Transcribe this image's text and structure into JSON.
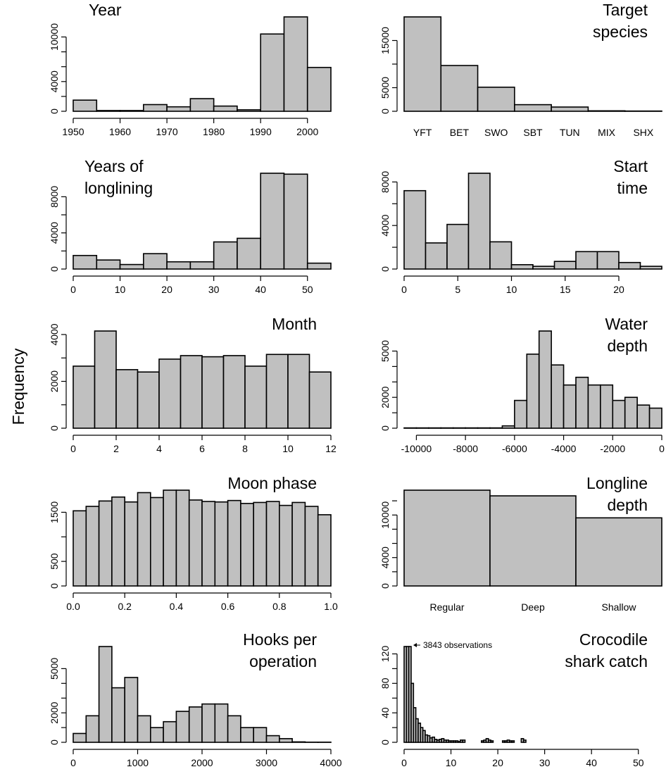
{
  "figure": {
    "ylabel": "Frequency",
    "colors": {
      "bar_fill": "#c0c0c0",
      "bar_stroke": "#000000",
      "background": "#ffffff"
    }
  },
  "chart_data": [
    {
      "id": "year",
      "type": "bar",
      "title_lines": [
        "Year"
      ],
      "title_align": "left",
      "x_kind": "histogram",
      "bins": [
        [
          1950,
          1955
        ],
        [
          1955,
          1960
        ],
        [
          1960,
          1965
        ],
        [
          1965,
          1970
        ],
        [
          1970,
          1975
        ],
        [
          1975,
          1980
        ],
        [
          1980,
          1985
        ],
        [
          1985,
          1990
        ],
        [
          1990,
          1995
        ],
        [
          1995,
          2000
        ],
        [
          2000,
          2005
        ]
      ],
      "values": [
        1500,
        100,
        100,
        900,
        600,
        1700,
        700,
        200,
        10400,
        12700,
        5900
      ],
      "xlim": [
        1950,
        2005
      ],
      "ylim": [
        0,
        12700
      ],
      "xticks": [
        1950,
        1960,
        1970,
        1980,
        1990,
        2000
      ],
      "yticks": [
        0,
        4000,
        10000
      ],
      "yminor": [
        2000,
        6000,
        8000
      ],
      "grid": false
    },
    {
      "id": "target_species",
      "type": "bar",
      "title_lines": [
        "Target",
        "species"
      ],
      "title_align": "right",
      "x_kind": "categorical",
      "categories": [
        "YFT",
        "BET",
        "SWO",
        "SBT",
        "TUN",
        "MIX",
        "SHX"
      ],
      "values": [
        20000,
        9700,
        5100,
        1400,
        900,
        100,
        50
      ],
      "ylim": [
        0,
        20000
      ],
      "yticks": [
        0,
        5000,
        15000
      ],
      "yminor": [
        10000
      ],
      "grid": false
    },
    {
      "id": "years_of_longlining",
      "type": "bar",
      "title_lines": [
        "Years of",
        "longlining"
      ],
      "title_align": "left",
      "x_kind": "histogram",
      "bins": [
        [
          0,
          5
        ],
        [
          5,
          10
        ],
        [
          10,
          15
        ],
        [
          15,
          20
        ],
        [
          20,
          25
        ],
        [
          25,
          30
        ],
        [
          30,
          35
        ],
        [
          35,
          40
        ],
        [
          40,
          45
        ],
        [
          45,
          50
        ],
        [
          50,
          55
        ]
      ],
      "values": [
        1500,
        1000,
        500,
        1700,
        800,
        800,
        3000,
        3400,
        10600,
        10500,
        650
      ],
      "xlim": [
        0,
        55
      ],
      "ylim": [
        0,
        10600
      ],
      "xticks": [
        0,
        10,
        20,
        30,
        40,
        50
      ],
      "yticks": [
        0,
        4000,
        8000
      ],
      "yminor": [
        2000,
        6000
      ],
      "grid": false
    },
    {
      "id": "start_time",
      "type": "bar",
      "title_lines": [
        "Start",
        "time"
      ],
      "title_align": "right",
      "x_kind": "histogram",
      "bins": [
        [
          0,
          2
        ],
        [
          2,
          4
        ],
        [
          4,
          6
        ],
        [
          6,
          8
        ],
        [
          8,
          10
        ],
        [
          10,
          12
        ],
        [
          12,
          14
        ],
        [
          14,
          16
        ],
        [
          16,
          18
        ],
        [
          18,
          20
        ],
        [
          20,
          22
        ],
        [
          22,
          24
        ]
      ],
      "values": [
        7200,
        2400,
        4100,
        8800,
        2500,
        400,
        250,
        700,
        1600,
        1600,
        600,
        250
      ],
      "xlim": [
        0,
        24
      ],
      "ylim": [
        0,
        8800
      ],
      "xticks": [
        0,
        5,
        10,
        15,
        20
      ],
      "yticks": [
        0,
        4000,
        8000
      ],
      "yminor": [
        2000,
        6000
      ],
      "grid": false
    },
    {
      "id": "month",
      "type": "bar",
      "title_lines": [
        "Month"
      ],
      "title_align": "right",
      "x_kind": "histogram",
      "bins": [
        [
          0,
          1
        ],
        [
          1,
          2
        ],
        [
          2,
          3
        ],
        [
          3,
          4
        ],
        [
          4,
          5
        ],
        [
          5,
          6
        ],
        [
          6,
          7
        ],
        [
          7,
          8
        ],
        [
          8,
          9
        ],
        [
          9,
          10
        ],
        [
          10,
          11
        ],
        [
          11,
          12
        ]
      ],
      "values": [
        2650,
        4150,
        2500,
        2400,
        2950,
        3100,
        3050,
        3100,
        2650,
        3150,
        3150,
        2400
      ],
      "xlim": [
        0,
        12
      ],
      "ylim": [
        0,
        4150
      ],
      "xticks": [
        0,
        2,
        4,
        6,
        8,
        10,
        12
      ],
      "yticks": [
        0,
        2000,
        4000
      ],
      "yminor": [
        1000,
        3000
      ],
      "grid": false
    },
    {
      "id": "water_depth",
      "type": "bar",
      "title_lines": [
        "Water",
        "depth"
      ],
      "title_align": "right",
      "x_kind": "histogram",
      "bins": [
        [
          -10500,
          -10000
        ],
        [
          -10000,
          -9500
        ],
        [
          -9500,
          -9000
        ],
        [
          -9000,
          -8500
        ],
        [
          -8500,
          -8000
        ],
        [
          -8000,
          -7500
        ],
        [
          -7500,
          -7000
        ],
        [
          -7000,
          -6500
        ],
        [
          -6500,
          -6000
        ],
        [
          -6000,
          -5500
        ],
        [
          -5500,
          -5000
        ],
        [
          -5000,
          -4500
        ],
        [
          -4500,
          -4000
        ],
        [
          -4000,
          -3500
        ],
        [
          -3500,
          -3000
        ],
        [
          -3000,
          -2500
        ],
        [
          -2500,
          -2000
        ],
        [
          -2000,
          -1500
        ],
        [
          -1500,
          -1000
        ],
        [
          -1000,
          -500
        ],
        [
          -500,
          0
        ]
      ],
      "values": [
        20,
        20,
        20,
        20,
        20,
        20,
        20,
        20,
        150,
        1800,
        4800,
        6300,
        4100,
        2800,
        3300,
        2800,
        2800,
        1800,
        2000,
        1500,
        1300
      ],
      "xlim": [
        -10500,
        0
      ],
      "ylim": [
        0,
        6300
      ],
      "xticks": [
        -10000,
        -8000,
        -6000,
        -4000,
        -2000,
        0
      ],
      "yticks": [
        0,
        2000,
        5000
      ],
      "yminor": [
        1000,
        3000,
        4000
      ],
      "grid": false
    },
    {
      "id": "moon_phase",
      "type": "bar",
      "title_lines": [
        "Moon phase"
      ],
      "title_align": "right",
      "x_kind": "histogram",
      "bins": [
        [
          0,
          0.05
        ],
        [
          0.05,
          0.1
        ],
        [
          0.1,
          0.15
        ],
        [
          0.15,
          0.2
        ],
        [
          0.2,
          0.25
        ],
        [
          0.25,
          0.3
        ],
        [
          0.3,
          0.35
        ],
        [
          0.35,
          0.4
        ],
        [
          0.4,
          0.45
        ],
        [
          0.45,
          0.5
        ],
        [
          0.5,
          0.55
        ],
        [
          0.55,
          0.6
        ],
        [
          0.6,
          0.65
        ],
        [
          0.65,
          0.7
        ],
        [
          0.7,
          0.75
        ],
        [
          0.75,
          0.8
        ],
        [
          0.8,
          0.85
        ],
        [
          0.85,
          0.9
        ],
        [
          0.9,
          0.95
        ],
        [
          0.95,
          1.0
        ]
      ],
      "values": [
        1530,
        1620,
        1730,
        1810,
        1710,
        1900,
        1800,
        1950,
        1950,
        1750,
        1720,
        1710,
        1740,
        1680,
        1700,
        1720,
        1640,
        1700,
        1620,
        1450
      ],
      "xlim": [
        0,
        1
      ],
      "ylim": [
        0,
        1950
      ],
      "xticks": [
        "0.0",
        "0.2",
        "0.4",
        "0.6",
        "0.8",
        "1.0"
      ],
      "yticks": [
        0,
        500,
        1500
      ],
      "yminor": [
        1000
      ],
      "grid": false
    },
    {
      "id": "longline_depth",
      "type": "bar",
      "title_lines": [
        "Longline",
        "depth"
      ],
      "title_align": "right",
      "x_kind": "categorical",
      "categories": [
        "Regular",
        "Deep",
        "Shallow"
      ],
      "values": [
        13500,
        12700,
        9600
      ],
      "ylim": [
        0,
        13500
      ],
      "yticks": [
        0,
        4000,
        10000
      ],
      "yminor": [
        2000,
        6000,
        8000,
        12000
      ],
      "grid": false
    },
    {
      "id": "hooks_per_operation",
      "type": "bar",
      "title_lines": [
        "Hooks per",
        "operation"
      ],
      "title_align": "right",
      "x_kind": "histogram",
      "bins": [
        [
          0,
          200
        ],
        [
          200,
          400
        ],
        [
          400,
          600
        ],
        [
          600,
          800
        ],
        [
          800,
          1000
        ],
        [
          1000,
          1200
        ],
        [
          1200,
          1400
        ],
        [
          1400,
          1600
        ],
        [
          1600,
          1800
        ],
        [
          1800,
          2000
        ],
        [
          2000,
          2200
        ],
        [
          2200,
          2400
        ],
        [
          2400,
          2600
        ],
        [
          2600,
          2800
        ],
        [
          2800,
          3000
        ],
        [
          3000,
          3200
        ],
        [
          3200,
          3400
        ],
        [
          3400,
          3600
        ],
        [
          3600,
          3800
        ],
        [
          3800,
          4000
        ]
      ],
      "values": [
        600,
        1800,
        6500,
        3700,
        4400,
        1800,
        1000,
        1400,
        2100,
        2400,
        2600,
        2600,
        1800,
        1000,
        1000,
        450,
        250,
        30,
        10,
        10
      ],
      "xlim": [
        0,
        4000
      ],
      "ylim": [
        0,
        6500
      ],
      "xticks": [
        0,
        1000,
        2000,
        3000,
        4000
      ],
      "yticks": [
        0,
        2000,
        5000
      ],
      "yminor": [
        1000,
        3000,
        4000
      ],
      "grid": false
    },
    {
      "id": "crocodile_shark_catch",
      "type": "bar",
      "title_lines": [
        "Crocodile",
        "shark catch"
      ],
      "title_align": "right",
      "x_kind": "histogram",
      "bins": [
        [
          0,
          0.5
        ],
        [
          0.5,
          1
        ],
        [
          1,
          1.5
        ],
        [
          1.5,
          2
        ],
        [
          2,
          2.5
        ],
        [
          2.5,
          3
        ],
        [
          3,
          3.5
        ],
        [
          3.5,
          4
        ],
        [
          4,
          4.5
        ],
        [
          4.5,
          5
        ],
        [
          5,
          5.5
        ],
        [
          5.5,
          6
        ],
        [
          6,
          6.5
        ],
        [
          6.5,
          7
        ],
        [
          7,
          7.5
        ],
        [
          7.5,
          8
        ],
        [
          8,
          8.5
        ],
        [
          8.5,
          9
        ],
        [
          9,
          9.5
        ],
        [
          9.5,
          10
        ],
        [
          10,
          10.5
        ],
        [
          10.5,
          11
        ],
        [
          11,
          11.5
        ],
        [
          11.5,
          12
        ],
        [
          12,
          12.5
        ],
        [
          12.5,
          13
        ],
        [
          16.5,
          17
        ],
        [
          17,
          17.5
        ],
        [
          17.5,
          18
        ],
        [
          18,
          18.5
        ],
        [
          18.5,
          19
        ],
        [
          21,
          21.5
        ],
        [
          21.5,
          22
        ],
        [
          22,
          22.5
        ],
        [
          22.5,
          23
        ],
        [
          23,
          23.5
        ],
        [
          25,
          25.5
        ],
        [
          25.5,
          26
        ]
      ],
      "values": [
        130,
        130,
        130,
        80,
        47,
        32,
        26,
        20,
        16,
        10,
        9,
        6,
        7,
        4,
        3,
        4,
        5,
        3,
        3,
        2,
        2,
        2,
        2,
        1,
        3,
        3,
        2,
        3,
        5,
        3,
        2,
        2,
        2,
        3,
        2,
        2,
        5,
        3
      ],
      "xlim": [
        0,
        55
      ],
      "ylim": [
        0,
        130
      ],
      "xticks": [
        0,
        10,
        20,
        30,
        40,
        50
      ],
      "yticks": [
        0,
        40,
        80,
        120
      ],
      "yminor": [
        20,
        60,
        100
      ],
      "grid": false,
      "annotation": "3843 observations"
    }
  ]
}
